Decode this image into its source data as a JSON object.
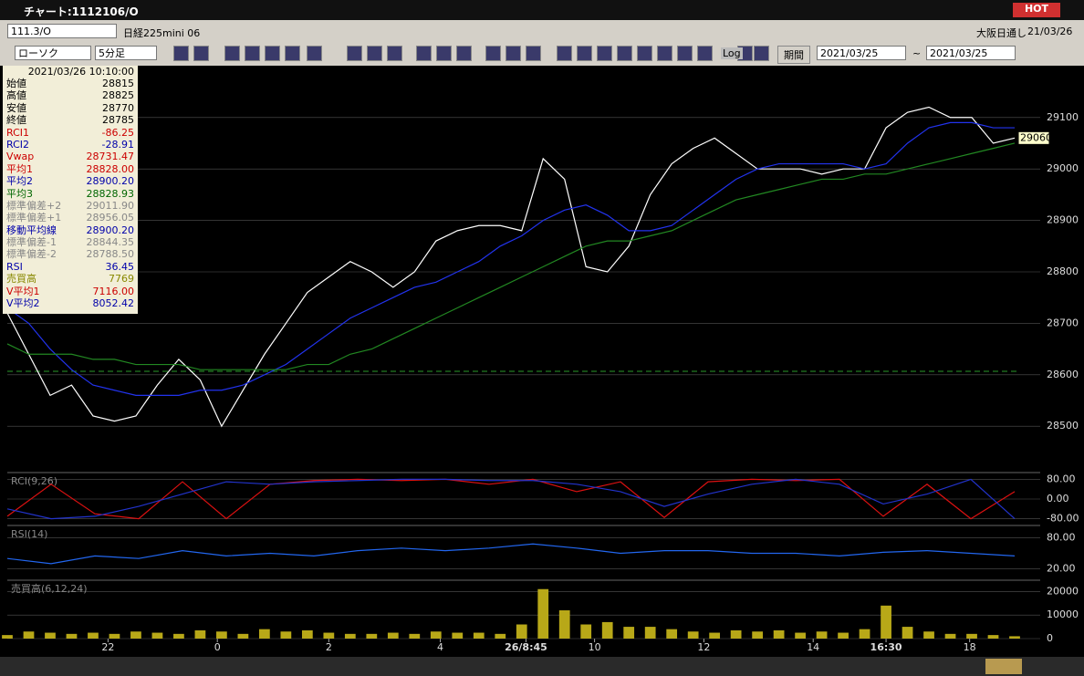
{
  "window": {
    "title": "チャート:1112106/O",
    "hot": "HOT"
  },
  "toolbar": {
    "code": "111.3/O",
    "name": "日経225mini 06",
    "exchange": "大阪日通し",
    "date": "21/03/26",
    "chart_kind": "ローソク",
    "interval": "5分足",
    "period": "期間",
    "date_from": "2021/03/25",
    "tilde": "~",
    "date_to": "2021/03/25",
    "log": "Log"
  },
  "info": {
    "datetime": "2021/03/26  10:10:00",
    "rows": [
      {
        "label": "始値",
        "value": "28815",
        "color": "#000000"
      },
      {
        "label": "高値",
        "value": "28825",
        "color": "#000000"
      },
      {
        "label": "安値",
        "value": "28770",
        "color": "#000000"
      },
      {
        "label": "終値",
        "value": "28785",
        "color": "#000000"
      },
      {
        "label": "RCI1",
        "value": "-86.25",
        "color": "#cc0000"
      },
      {
        "label": "RCI2",
        "value": "-28.91",
        "color": "#0000aa"
      },
      {
        "label": "Vwap",
        "value": "28731.47",
        "color": "#cc0000"
      },
      {
        "label": "平均1",
        "value": "28828.00",
        "color": "#cc0000"
      },
      {
        "label": "平均2",
        "value": "28900.20",
        "color": "#0000aa"
      },
      {
        "label": "平均3",
        "value": "28828.93",
        "color": "#006600"
      },
      {
        "label": "標準偏差+2",
        "value": "29011.90",
        "color": "#888888"
      },
      {
        "label": "標準偏差+1",
        "value": "28956.05",
        "color": "#888888"
      },
      {
        "label": "移動平均線",
        "value": "28900.20",
        "color": "#0000aa"
      },
      {
        "label": "標準偏差-1",
        "value": "28844.35",
        "color": "#888888"
      },
      {
        "label": "標準偏差-2",
        "value": "28788.50",
        "color": "#888888"
      },
      {
        "label": "RSI",
        "value": "36.45",
        "color": "#0000aa"
      },
      {
        "label": "売買高",
        "value": "7769",
        "color": "#888800"
      },
      {
        "label": "V平均1",
        "value": "7116.00",
        "color": "#cc0000"
      },
      {
        "label": "V平均2",
        "value": "8052.42",
        "color": "#0000aa"
      }
    ]
  },
  "chart_data": [
    {
      "type": "line",
      "ylim": [
        28410,
        29190
      ],
      "yticks": [
        28500,
        28600,
        28700,
        28800,
        28900,
        29000,
        29100
      ],
      "xlim": [
        0,
        47
      ],
      "xticks": [
        {
          "value": 4.7,
          "label": "22"
        },
        {
          "value": 9.8,
          "label": "0"
        },
        {
          "value": 15,
          "label": "2"
        },
        {
          "value": 20.2,
          "label": "4"
        },
        {
          "value": 24.2,
          "label": "26/8:45"
        },
        {
          "value": 27.4,
          "label": "10"
        },
        {
          "value": 32.5,
          "label": "12"
        },
        {
          "value": 37.6,
          "label": "14"
        },
        {
          "value": 41,
          "label": "16:30"
        },
        {
          "value": 44.9,
          "label": "18"
        }
      ],
      "last_price": 29060,
      "series": [
        {
          "color": "#ffffff",
          "values": [
            28720,
            28640,
            28560,
            28580,
            28520,
            28510,
            28520,
            28580,
            28630,
            28590,
            28500,
            28570,
            28640,
            28700,
            28760,
            28790,
            28820,
            28800,
            28770,
            28800,
            28860,
            28880,
            28890,
            28890,
            28880,
            29020,
            28980,
            28810,
            28800,
            28850,
            28950,
            29010,
            29040,
            29060,
            29030,
            29000,
            29000,
            29000,
            28990,
            29000,
            29000,
            29080,
            29110,
            29120,
            29100,
            29100,
            29050,
            29060
          ]
        },
        {
          "color": "#2233ee",
          "values": [
            28730,
            28700,
            28650,
            28610,
            28580,
            28570,
            28560,
            28560,
            28560,
            28570,
            28570,
            28580,
            28600,
            28620,
            28650,
            28680,
            28710,
            28730,
            28750,
            28770,
            28780,
            28800,
            28820,
            28850,
            28870,
            28900,
            28920,
            28930,
            28910,
            28880,
            28880,
            28890,
            28920,
            28950,
            28980,
            29000,
            29010,
            29010,
            29010,
            29010,
            29000,
            29010,
            29050,
            29080,
            29090,
            29090,
            29080,
            29080
          ]
        },
        {
          "color": "#228822",
          "values": [
            28660,
            28640,
            28640,
            28640,
            28630,
            28630,
            28620,
            28620,
            28620,
            28610,
            28610,
            28610,
            28610,
            28610,
            28620,
            28620,
            28640,
            28650,
            28670,
            28690,
            28710,
            28730,
            28750,
            28770,
            28790,
            28810,
            28830,
            28850,
            28860,
            28860,
            28870,
            28880,
            28900,
            28920,
            28940,
            28950,
            28960,
            28970,
            28980,
            28980,
            28990,
            28990,
            29000,
            29010,
            29020,
            29030,
            29040,
            29050
          ]
        }
      ]
    },
    {
      "type": "line",
      "title": "RCI(9,26)",
      "ylim": [
        -100,
        100
      ],
      "xlim": [
        0,
        23
      ],
      "yticks": [
        {
          "value": 80,
          "label": "80.00"
        },
        {
          "value": 0,
          "label": "0.00"
        },
        {
          "value": -80,
          "label": "-80.00"
        }
      ],
      "series": [
        {
          "color": "#dd1111",
          "values": [
            -70,
            60,
            -60,
            -80,
            70,
            -80,
            60,
            75,
            80,
            75,
            80,
            60,
            80,
            30,
            70,
            -75,
            70,
            80,
            75,
            80,
            -70,
            60,
            -80,
            30
          ]
        },
        {
          "color": "#2233cc",
          "values": [
            -40,
            -80,
            -70,
            -30,
            20,
            70,
            60,
            70,
            75,
            80,
            80,
            75,
            75,
            60,
            30,
            -30,
            20,
            60,
            80,
            60,
            -20,
            20,
            80,
            -80
          ]
        }
      ]
    },
    {
      "type": "line",
      "title": "RSI(14)",
      "ylim": [
        0,
        100
      ],
      "xlim": [
        0,
        23
      ],
      "yticks": [
        {
          "value": 80,
          "label": "80.00"
        },
        {
          "value": 20,
          "label": "20.00"
        }
      ],
      "series": [
        {
          "color": "#2266ee",
          "values": [
            40,
            30,
            45,
            40,
            55,
            45,
            50,
            45,
            55,
            60,
            55,
            60,
            68,
            60,
            50,
            55,
            55,
            50,
            50,
            45,
            52,
            55,
            50,
            45
          ]
        }
      ]
    },
    {
      "type": "bar",
      "title": "売買高(6,12,24)",
      "ylim": [
        0,
        24000
      ],
      "xlim": [
        0,
        47
      ],
      "yticks": [
        0,
        10000,
        20000
      ],
      "color": "#b8a818",
      "values": [
        1500,
        3000,
        2500,
        2000,
        2500,
        2000,
        3000,
        2500,
        2000,
        3500,
        3000,
        2000,
        4000,
        3000,
        3500,
        2500,
        2000,
        2000,
        2500,
        2000,
        3000,
        2500,
        2500,
        2000,
        6000,
        21000,
        12000,
        6000,
        7000,
        5000,
        5000,
        4000,
        3000,
        2500,
        3500,
        3000,
        3500,
        2500,
        3000,
        2500,
        4000,
        14000,
        5000,
        3000,
        2000,
        2000,
        1500,
        1000
      ]
    }
  ]
}
